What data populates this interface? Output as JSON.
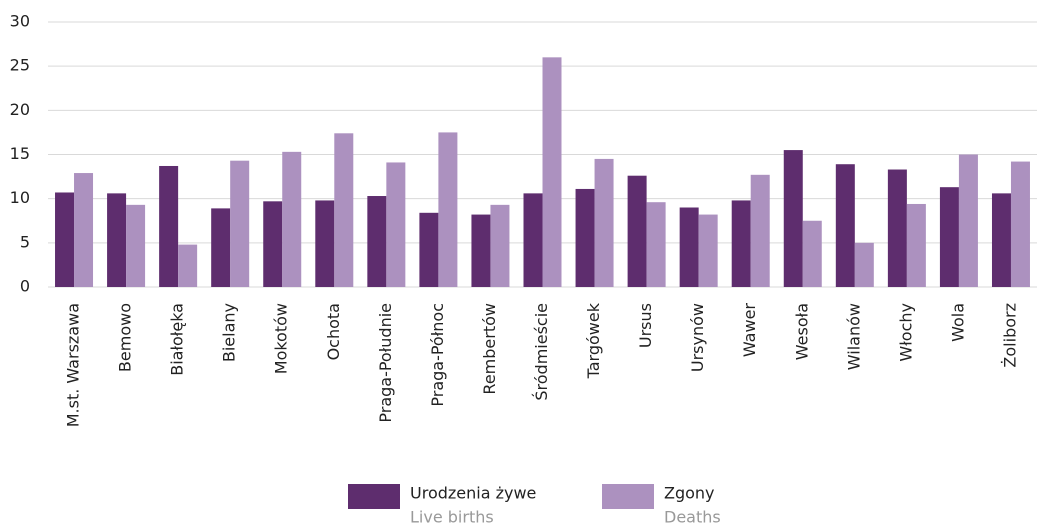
{
  "chart_data": {
    "type": "bar",
    "categories": [
      "M.st. Warszawa",
      "Bemowo",
      "Białołęka",
      "Bielany",
      "Mokotów",
      "Ochota",
      "Praga-Południe",
      "Praga-Północ",
      "Rembertów",
      "Śródmieście",
      "Targówek",
      "Ursus",
      "Ursynów",
      "Wawer",
      "Wesoła",
      "Wilanów",
      "Włochy",
      "Wola",
      "Żoliborz"
    ],
    "series": [
      {
        "name": "Urodzenia żywe",
        "name_en": "Live births",
        "color": "#5e2d6e",
        "values": [
          10.7,
          10.6,
          13.7,
          8.9,
          9.7,
          9.8,
          10.3,
          8.4,
          8.2,
          10.6,
          11.1,
          12.6,
          9.0,
          9.8,
          15.5,
          13.9,
          13.3,
          11.3,
          10.6
        ]
      },
      {
        "name": "Zgony",
        "name_en": "Deaths",
        "color": "#ac91bf",
        "values": [
          12.9,
          9.3,
          4.8,
          14.3,
          15.3,
          17.4,
          14.1,
          17.5,
          9.3,
          26.0,
          14.5,
          9.6,
          8.2,
          12.7,
          7.5,
          5.0,
          9.4,
          15.0,
          14.2
        ]
      }
    ],
    "ylim": [
      0,
      30
    ],
    "yticks": [
      0,
      5,
      10,
      15,
      20,
      25,
      30
    ],
    "grid": true
  }
}
